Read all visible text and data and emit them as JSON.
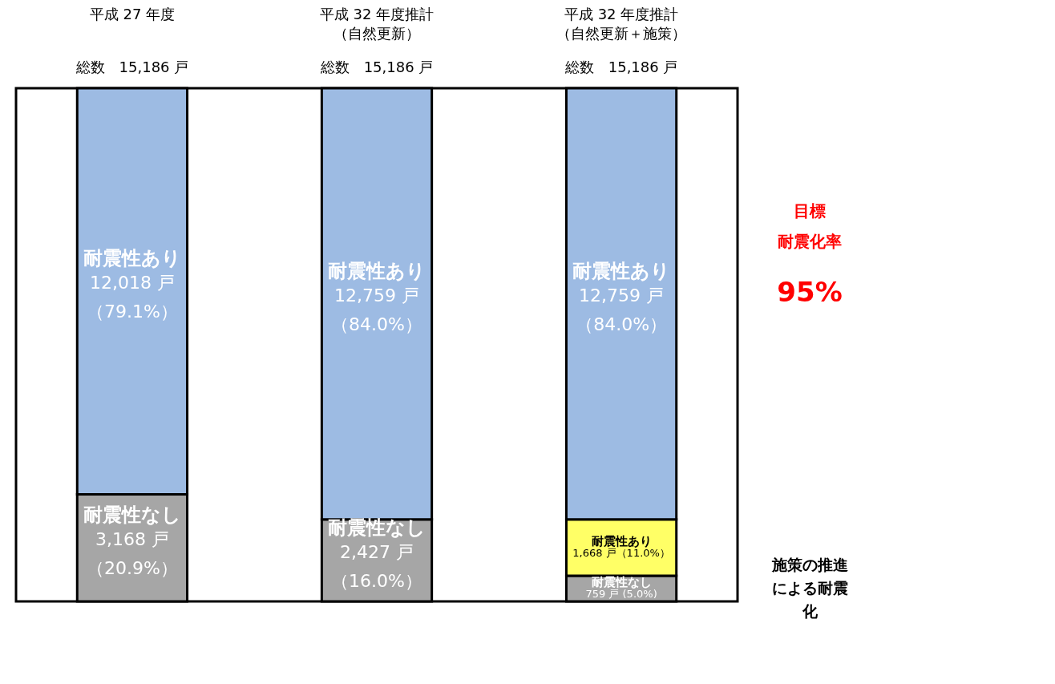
{
  "chart_data": {
    "type": "bar",
    "stacked": true,
    "categories": [
      "平成 27 年度",
      "平成 32 年度推計（自然更新）",
      "平成 32 年度推計（自然更新＋施策）"
    ],
    "totals": [
      "総数　15,186 戸",
      "総数　15,186 戸",
      "総数　15,186 戸"
    ],
    "series": [
      {
        "name": "耐震性なし",
        "color": "#a6a6a6",
        "values": [
          3168,
          2427,
          759
        ],
        "value_labels": [
          "3,168 戸（20.9%）",
          "2,427 戸（16.0%）",
          "759 戸 (5.0%)"
        ]
      },
      {
        "name": "耐震性あり",
        "color": "#ffff66",
        "values": [
          null,
          null,
          1668
        ],
        "value_labels": [
          null,
          null,
          "1,668 戸（11.0%）"
        ]
      },
      {
        "name": "耐震性あり",
        "color": "#9dbbe3",
        "values": [
          12018,
          12759,
          12759
        ],
        "value_labels": [
          "12,018 戸（79.1%）",
          "12,759 戸（84.0%）",
          "12,759 戸（84.0%）"
        ]
      }
    ],
    "annotations": [
      "目標",
      "耐震化率",
      "95%",
      "施策の推進による耐震化"
    ]
  }
}
